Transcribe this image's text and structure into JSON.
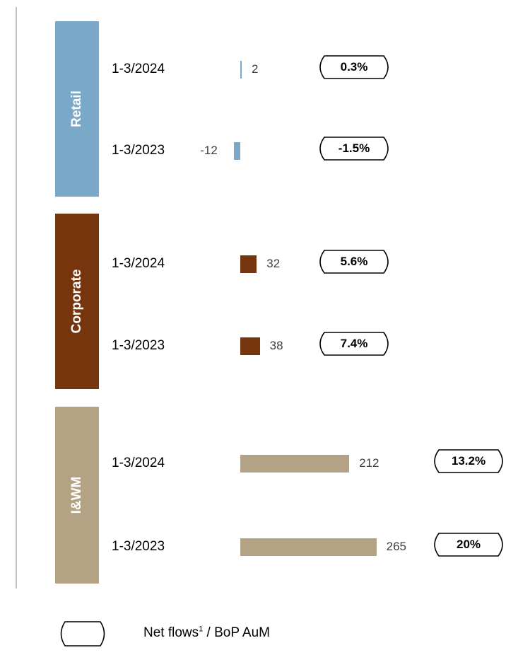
{
  "chart_data": {
    "type": "bar",
    "orientation": "horizontal",
    "segments": [
      {
        "name": "Retail",
        "color": "#7aa8c8",
        "rows": [
          {
            "period": "1-3/2024",
            "value": 2,
            "value_label": "2",
            "ratio_label": "0.3%"
          },
          {
            "period": "1-3/2023",
            "value": -12,
            "value_label": "-12",
            "ratio_label": "-1.5%"
          }
        ]
      },
      {
        "name": "Corporate",
        "color": "#76350d",
        "rows": [
          {
            "period": "1-3/2024",
            "value": 32,
            "value_label": "32",
            "ratio_label": "5.6%"
          },
          {
            "period": "1-3/2023",
            "value": 38,
            "value_label": "38",
            "ratio_label": "7.4%"
          }
        ]
      },
      {
        "name": "I&WM",
        "color": "#b3a384",
        "rows": [
          {
            "period": "1-3/2024",
            "value": 212,
            "value_label": "212",
            "ratio_label": "13.2%"
          },
          {
            "period": "1-3/2023",
            "value": 265,
            "value_label": "265",
            "ratio_label": "20%"
          }
        ]
      }
    ],
    "legend": {
      "text": "Net flows",
      "superscript": "1",
      "suffix": " / BoP AuM"
    },
    "grid": false
  }
}
